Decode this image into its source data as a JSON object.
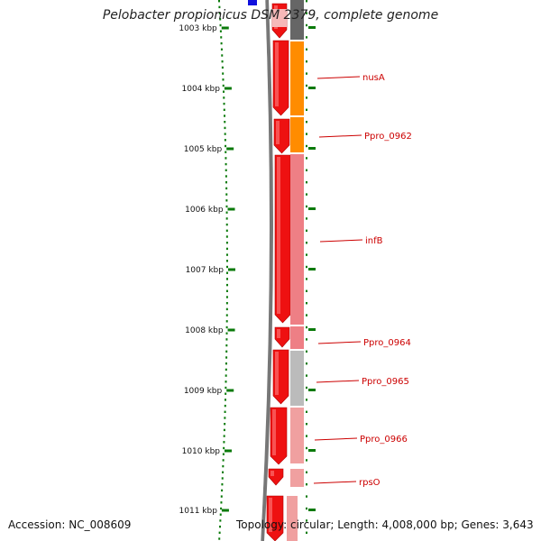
{
  "title": "Pelobacter propionicus DSM 2379, complete genome",
  "accession": "Accession: NC_008609",
  "topology": "Topology: circular; Length: 4,008,000 bp; Genes: 3,643",
  "colors": {
    "tick": "#0a7a0a",
    "backbone": "#777777",
    "feature_red": "#ee1111",
    "label": "#cc0000",
    "orange": "#ff8c00",
    "pink": "#ee7f85",
    "light_pink": "#f0a0a0",
    "gray": "#bbbbbb",
    "dark_gray": "#666666",
    "blue": "#1010dd"
  },
  "scale_labels": [
    "1003 kbp",
    "1004 kbp",
    "1005 kbp",
    "1006 kbp",
    "1007 kbp",
    "1008 kbp",
    "1009 kbp",
    "1010 kbp",
    "1011 kbp"
  ],
  "gene_labels": [
    "nusA",
    "Ppro_0962",
    "infB",
    "Ppro_0964",
    "Ppro_0965",
    "Ppro_0966",
    "rpsO"
  ],
  "cog_colors": [
    "dark_gray",
    "orange",
    "orange",
    "pink",
    "pink",
    "gray",
    "light_pink",
    "light_pink"
  ]
}
